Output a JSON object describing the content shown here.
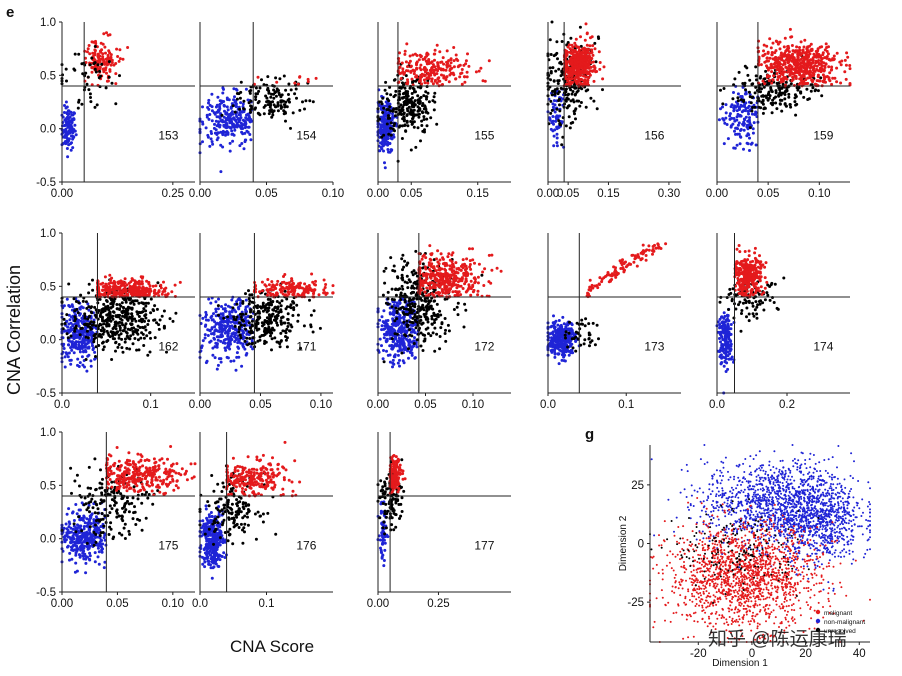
{
  "figure": {
    "panel_e_label": "e",
    "panel_g_label": "g",
    "x_axis_label": "CNA Score",
    "y_axis_label": "CNA Correlation",
    "watermark": "知乎 @陈运康瑞"
  },
  "colors": {
    "malignant": "#e41a1c",
    "non_malignant": "#1f24d6",
    "unresolved": "#000000",
    "axis": "#222222"
  },
  "chart_data": [
    {
      "type": "scatter",
      "id": "153",
      "label": "153",
      "xlim": [
        0,
        0.3
      ],
      "ylim": [
        -0.5,
        1.0
      ],
      "xticks": [
        "0.00",
        "0.25"
      ],
      "xtick_values": [
        0,
        0.25
      ],
      "yticks": [
        "1.0",
        "0.5",
        "0.0",
        "-0.5"
      ],
      "ytick_values": [
        1.0,
        0.5,
        0.0,
        -0.5
      ],
      "x_threshold": 0.05,
      "y_threshold": 0.4,
      "clusters": [
        {
          "class": "non_malignant",
          "n": 120,
          "cx": 0.015,
          "sx": 0.008,
          "cy": 0.0,
          "sy": 0.1,
          "xmax": 0.05,
          "ymax": 0.4
        },
        {
          "class": "malignant",
          "n": 140,
          "cx": 0.09,
          "sx": 0.018,
          "cy": 0.63,
          "sy": 0.09,
          "xmin": 0.05,
          "ymin": 0.4
        },
        {
          "class": "unresolved",
          "n": 50,
          "cx": 0.06,
          "sx": 0.03,
          "cy": 0.45,
          "sy": 0.12
        }
      ]
    },
    {
      "type": "scatter",
      "id": "154",
      "label": "154",
      "xlim": [
        0,
        0.1
      ],
      "ylim": [
        -0.5,
        1.0
      ],
      "xticks": [
        "0.00",
        "0.05",
        "0.10"
      ],
      "xtick_values": [
        0,
        0.05,
        0.1
      ],
      "yticks": [],
      "ytick_values": [],
      "x_threshold": 0.04,
      "y_threshold": 0.4,
      "clusters": [
        {
          "class": "non_malignant",
          "n": 260,
          "cx": 0.022,
          "sx": 0.011,
          "cy": 0.08,
          "sy": 0.12,
          "xmax": 0.04,
          "ymax": 0.4
        },
        {
          "class": "unresolved",
          "n": 140,
          "cx": 0.052,
          "sx": 0.012,
          "cy": 0.28,
          "sy": 0.1
        },
        {
          "class": "malignant",
          "n": 10,
          "cx": 0.075,
          "sx": 0.012,
          "cy": 0.45,
          "sy": 0.03,
          "xmin": 0.04,
          "ymin": 0.4
        }
      ]
    },
    {
      "type": "scatter",
      "id": "155",
      "label": "155",
      "xlim": [
        0,
        0.2
      ],
      "ylim": [
        -0.5,
        1.0
      ],
      "xticks": [
        "0.00",
        "0.05",
        "0.15"
      ],
      "xtick_values": [
        0,
        0.05,
        0.15
      ],
      "yticks": [],
      "ytick_values": [],
      "x_threshold": 0.03,
      "y_threshold": 0.4,
      "clusters": [
        {
          "class": "non_malignant",
          "n": 220,
          "cx": 0.012,
          "sx": 0.007,
          "cy": 0.02,
          "sy": 0.12,
          "xmax": 0.03,
          "ymax": 0.4
        },
        {
          "class": "unresolved",
          "n": 260,
          "cx": 0.045,
          "sx": 0.018,
          "cy": 0.22,
          "sy": 0.14
        },
        {
          "class": "malignant",
          "n": 220,
          "cx": 0.08,
          "sx": 0.03,
          "cy": 0.55,
          "sy": 0.09,
          "xmin": 0.03,
          "ymin": 0.4
        }
      ]
    },
    {
      "type": "scatter",
      "id": "156",
      "label": "156",
      "xlim": [
        0,
        0.33
      ],
      "ylim": [
        -0.5,
        1.0
      ],
      "xticks": [
        "0.00",
        "0.05",
        "0.15",
        "0.30"
      ],
      "xtick_values": [
        0,
        0.05,
        0.15,
        0.3
      ],
      "yticks": [],
      "ytick_values": [],
      "x_threshold": 0.04,
      "y_threshold": 0.4,
      "clusters": [
        {
          "class": "non_malignant",
          "n": 60,
          "cx": 0.02,
          "sx": 0.01,
          "cy": 0.1,
          "sy": 0.15,
          "xmax": 0.04,
          "ymax": 0.4
        },
        {
          "class": "unresolved",
          "n": 220,
          "cx": 0.05,
          "sx": 0.03,
          "cy": 0.45,
          "sy": 0.2
        },
        {
          "class": "malignant",
          "n": 420,
          "cx": 0.075,
          "sx": 0.022,
          "cy": 0.6,
          "sy": 0.1,
          "xmin": 0.04,
          "ymin": 0.4
        }
      ]
    },
    {
      "type": "scatter",
      "id": "159",
      "label": "159",
      "xlim": [
        0,
        0.13
      ],
      "ylim": [
        -0.5,
        1.0
      ],
      "xticks": [
        "0.00",
        "0.05",
        "0.10"
      ],
      "xtick_values": [
        0,
        0.05,
        0.1
      ],
      "yticks": [],
      "ytick_values": [],
      "x_threshold": 0.04,
      "y_threshold": 0.4,
      "clusters": [
        {
          "class": "non_malignant",
          "n": 140,
          "cx": 0.025,
          "sx": 0.01,
          "cy": 0.1,
          "sy": 0.14,
          "xmax": 0.04,
          "ymax": 0.4
        },
        {
          "class": "unresolved",
          "n": 200,
          "cx": 0.055,
          "sx": 0.02,
          "cy": 0.35,
          "sy": 0.1
        },
        {
          "class": "malignant",
          "n": 520,
          "cx": 0.08,
          "sx": 0.02,
          "cy": 0.6,
          "sy": 0.1,
          "xmin": 0.04,
          "ymin": 0.4
        }
      ]
    },
    {
      "type": "scatter",
      "id": "162",
      "label": "162",
      "xlim": [
        0,
        0.15
      ],
      "ylim": [
        -0.5,
        1.0
      ],
      "xticks": [
        "0.0",
        "0.1"
      ],
      "xtick_values": [
        0,
        0.1
      ],
      "yticks": [
        "1.0",
        "0.5",
        "0.0",
        "-0.5"
      ],
      "ytick_values": [
        1.0,
        0.5,
        0.0,
        -0.5
      ],
      "x_threshold": 0.04,
      "y_threshold": 0.4,
      "clusters": [
        {
          "class": "non_malignant",
          "n": 300,
          "cx": 0.02,
          "sx": 0.011,
          "cy": 0.05,
          "sy": 0.13,
          "xmax": 0.04,
          "ymax": 0.4
        },
        {
          "class": "unresolved",
          "n": 420,
          "cx": 0.06,
          "sx": 0.025,
          "cy": 0.2,
          "sy": 0.14
        },
        {
          "class": "malignant",
          "n": 320,
          "cx": 0.07,
          "sx": 0.025,
          "cy": 0.47,
          "sy": 0.05,
          "xmin": 0.04,
          "ymin": 0.4
        }
      ]
    },
    {
      "type": "scatter",
      "id": "171",
      "label": "171",
      "xlim": [
        0,
        0.11
      ],
      "ylim": [
        -0.5,
        1.0
      ],
      "xticks": [
        "0.00",
        "0.05",
        "0.10"
      ],
      "xtick_values": [
        0,
        0.05,
        0.1
      ],
      "yticks": [],
      "ytick_values": [],
      "x_threshold": 0.045,
      "y_threshold": 0.4,
      "clusters": [
        {
          "class": "non_malignant",
          "n": 320,
          "cx": 0.025,
          "sx": 0.012,
          "cy": 0.08,
          "sy": 0.14,
          "xmax": 0.045,
          "ymax": 0.4
        },
        {
          "class": "unresolved",
          "n": 280,
          "cx": 0.055,
          "sx": 0.015,
          "cy": 0.2,
          "sy": 0.14
        },
        {
          "class": "malignant",
          "n": 160,
          "cx": 0.075,
          "sx": 0.017,
          "cy": 0.47,
          "sy": 0.05,
          "xmin": 0.045,
          "ymin": 0.4
        }
      ]
    },
    {
      "type": "scatter",
      "id": "172",
      "label": "172",
      "xlim": [
        0,
        0.14
      ],
      "ylim": [
        -0.5,
        1.0
      ],
      "xticks": [
        "0.00",
        "0.05",
        "0.10"
      ],
      "xtick_values": [
        0,
        0.05,
        0.1
      ],
      "yticks": [],
      "ytick_values": [],
      "x_threshold": 0.043,
      "y_threshold": 0.4,
      "clusters": [
        {
          "class": "non_malignant",
          "n": 340,
          "cx": 0.022,
          "sx": 0.011,
          "cy": 0.08,
          "sy": 0.15,
          "xmax": 0.043,
          "ymax": 0.4
        },
        {
          "class": "unresolved",
          "n": 320,
          "cx": 0.045,
          "sx": 0.017,
          "cy": 0.35,
          "sy": 0.2
        },
        {
          "class": "malignant",
          "n": 380,
          "cx": 0.07,
          "sx": 0.02,
          "cy": 0.58,
          "sy": 0.1,
          "xmin": 0.043,
          "ymin": 0.4
        }
      ]
    },
    {
      "type": "scatter",
      "id": "173",
      "label": "173",
      "xlim": [
        0,
        0.17
      ],
      "ylim": [
        -0.5,
        1.0
      ],
      "xticks": [
        "0.0",
        "0.1"
      ],
      "xtick_values": [
        0,
        0.1
      ],
      "yticks": [],
      "ytick_values": [],
      "x_threshold": 0.04,
      "y_threshold": 0.4,
      "clusters": [
        {
          "class": "non_malignant",
          "n": 320,
          "cx": 0.018,
          "sx": 0.009,
          "cy": 0.0,
          "sy": 0.08,
          "xmax": 0.04,
          "ymax": 0.4
        },
        {
          "class": "unresolved",
          "n": 40,
          "cx": 0.045,
          "sx": 0.01,
          "cy": 0.05,
          "sy": 0.1
        },
        {
          "class": "malignant",
          "n": 110,
          "cx": 0.11,
          "sx": 0.02,
          "cy": 0.7,
          "sy": 0.08,
          "xmin": 0.05,
          "ymin": 0.4,
          "curve": true
        }
      ]
    },
    {
      "type": "scatter",
      "id": "174",
      "label": "174",
      "xlim": [
        0,
        0.38
      ],
      "ylim": [
        -0.5,
        1.0
      ],
      "xticks": [
        "0.0",
        "0.2"
      ],
      "xtick_values": [
        0,
        0.2
      ],
      "yticks": [],
      "ytick_values": [],
      "x_threshold": 0.05,
      "y_threshold": 0.4,
      "clusters": [
        {
          "class": "non_malignant",
          "n": 160,
          "cx": 0.025,
          "sx": 0.01,
          "cy": 0.0,
          "sy": 0.12,
          "xmax": 0.05,
          "ymax": 0.4
        },
        {
          "class": "unresolved",
          "n": 90,
          "cx": 0.09,
          "sx": 0.04,
          "cy": 0.38,
          "sy": 0.1
        },
        {
          "class": "malignant",
          "n": 320,
          "cx": 0.09,
          "sx": 0.02,
          "cy": 0.6,
          "sy": 0.09,
          "xmin": 0.05,
          "ymin": 0.4
        }
      ]
    },
    {
      "type": "scatter",
      "id": "175",
      "label": "175",
      "xlim": [
        0,
        0.12
      ],
      "ylim": [
        -0.5,
        1.0
      ],
      "xticks": [
        "0.00",
        "0.05",
        "0.10"
      ],
      "xtick_values": [
        0,
        0.05,
        0.1
      ],
      "yticks": [
        "1.0",
        "0.5",
        "0.0",
        "-0.5"
      ],
      "ytick_values": [
        1.0,
        0.5,
        0.0,
        -0.5
      ],
      "x_threshold": 0.04,
      "y_threshold": 0.4,
      "clusters": [
        {
          "class": "non_malignant",
          "n": 320,
          "cx": 0.02,
          "sx": 0.01,
          "cy": 0.02,
          "sy": 0.12,
          "xmax": 0.04,
          "ymax": 0.4
        },
        {
          "class": "unresolved",
          "n": 180,
          "cx": 0.045,
          "sx": 0.018,
          "cy": 0.35,
          "sy": 0.16
        },
        {
          "class": "malignant",
          "n": 300,
          "cx": 0.07,
          "sx": 0.02,
          "cy": 0.6,
          "sy": 0.08,
          "xmin": 0.04,
          "ymin": 0.4
        }
      ]
    },
    {
      "type": "scatter",
      "id": "176",
      "label": "176",
      "xlim": [
        0,
        0.2
      ],
      "ylim": [
        -0.5,
        1.0
      ],
      "xticks": [
        "0.0",
        "0.1"
      ],
      "xtick_values": [
        0,
        0.1
      ],
      "yticks": [],
      "ytick_values": [],
      "x_threshold": 0.04,
      "y_threshold": 0.4,
      "clusters": [
        {
          "class": "non_malignant",
          "n": 320,
          "cx": 0.018,
          "sx": 0.008,
          "cy": 0.0,
          "sy": 0.13,
          "xmax": 0.04,
          "ymax": 0.4
        },
        {
          "class": "unresolved",
          "n": 160,
          "cx": 0.05,
          "sx": 0.02,
          "cy": 0.3,
          "sy": 0.15
        },
        {
          "class": "malignant",
          "n": 220,
          "cx": 0.08,
          "sx": 0.025,
          "cy": 0.56,
          "sy": 0.08,
          "xmin": 0.04,
          "ymin": 0.4
        }
      ]
    },
    {
      "type": "scatter",
      "id": "177",
      "label": "177",
      "xlim": [
        0,
        0.55
      ],
      "ylim": [
        -0.5,
        1.0
      ],
      "xticks": [
        "0.00",
        "0.25"
      ],
      "xtick_values": [
        0,
        0.25
      ],
      "yticks": [],
      "ytick_values": [],
      "x_threshold": 0.05,
      "y_threshold": 0.4,
      "clusters": [
        {
          "class": "non_malignant",
          "n": 60,
          "cx": 0.02,
          "sx": 0.008,
          "cy": 0.05,
          "sy": 0.15,
          "xmax": 0.05,
          "ymax": 0.4
        },
        {
          "class": "unresolved",
          "n": 120,
          "cx": 0.05,
          "sx": 0.025,
          "cy": 0.4,
          "sy": 0.14
        },
        {
          "class": "malignant",
          "n": 140,
          "cx": 0.07,
          "sx": 0.015,
          "cy": 0.6,
          "sy": 0.07,
          "xmin": 0.05,
          "ymin": 0.4
        }
      ]
    },
    {
      "type": "scatter",
      "id": "tsne",
      "xlabel": "Dimension 1",
      "ylabel": "Dimension 2",
      "xlim": [
        -38,
        44
      ],
      "ylim": [
        -42,
        42
      ],
      "xticks": [
        "-20",
        "0",
        "20",
        "40"
      ],
      "xtick_values": [
        -20,
        0,
        20,
        40
      ],
      "yticks": [
        "25",
        "0",
        "-25"
      ],
      "ytick_values": [
        25,
        0,
        -25
      ],
      "legend": [
        {
          "class": "malignant",
          "label": "malignant"
        },
        {
          "class": "non_malignant",
          "label": "non-malignant"
        },
        {
          "class": "unresolved",
          "label": "unresolved"
        }
      ],
      "clusters": [
        {
          "class": "non_malignant",
          "n": 1300,
          "cx": 10,
          "sx": 14,
          "cy": 17,
          "sy": 9
        },
        {
          "class": "non_malignant",
          "n": 500,
          "cx": 26,
          "sx": 7,
          "cy": 8,
          "sy": 9
        },
        {
          "class": "malignant",
          "n": 1600,
          "cx": -3,
          "sx": 14,
          "cy": -14,
          "sy": 11
        },
        {
          "class": "unresolved",
          "n": 160,
          "cx": -5,
          "sx": 12,
          "cy": -3,
          "sy": 8
        }
      ]
    }
  ]
}
